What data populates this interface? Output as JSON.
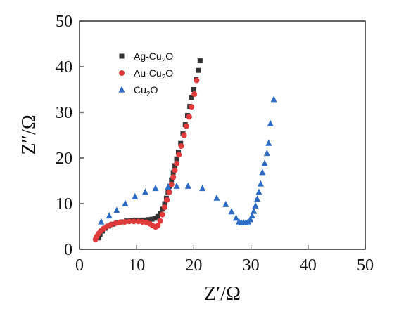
{
  "chart_data": {
    "type": "scatter",
    "xlabel": "Z′/Ω",
    "ylabel": "Z″/Ω",
    "xlim": [
      0,
      50
    ],
    "ylim": [
      0,
      50
    ],
    "xticks": [
      "0",
      "10",
      "20",
      "30",
      "40",
      "50"
    ],
    "yticks": [
      "0",
      "10",
      "20",
      "30",
      "40",
      "50"
    ],
    "grid": false,
    "legend_position": "top-left",
    "series": [
      {
        "name": "Ag-Cu2O",
        "label_parts": [
          "Ag-Cu",
          "2",
          "O"
        ],
        "marker": "square",
        "color": "#333333",
        "points": [
          [
            3.4,
            2.5
          ],
          [
            3.6,
            3.3
          ],
          [
            4.0,
            4.0
          ],
          [
            4.5,
            4.6
          ],
          [
            5.1,
            5.1
          ],
          [
            5.8,
            5.5
          ],
          [
            6.6,
            5.8
          ],
          [
            7.4,
            6.0
          ],
          [
            8.2,
            6.2
          ],
          [
            9.0,
            6.3
          ],
          [
            9.8,
            6.4
          ],
          [
            10.6,
            6.4
          ],
          [
            11.4,
            6.4
          ],
          [
            12.1,
            6.5
          ],
          [
            12.7,
            6.6
          ],
          [
            13.2,
            6.8
          ],
          [
            13.7,
            7.2
          ],
          [
            14.1,
            7.8
          ],
          [
            14.5,
            8.8
          ],
          [
            14.9,
            10.0
          ],
          [
            15.2,
            11.2
          ],
          [
            15.5,
            12.5
          ],
          [
            15.8,
            13.8
          ],
          [
            16.1,
            15.2
          ],
          [
            16.4,
            16.8
          ],
          [
            16.7,
            18.3
          ],
          [
            17.0,
            19.8
          ],
          [
            17.3,
            21.3
          ],
          [
            17.7,
            23.2
          ],
          [
            18.1,
            25.3
          ],
          [
            18.5,
            27.3
          ],
          [
            18.9,
            29.3
          ],
          [
            19.3,
            31.3
          ],
          [
            19.6,
            33.3
          ],
          [
            20.0,
            35.0
          ],
          [
            20.4,
            37.2
          ],
          [
            20.8,
            39.2
          ],
          [
            21.1,
            41.3
          ]
        ]
      },
      {
        "name": "Au-Cu2O",
        "label_parts": [
          "Au-Cu",
          "2",
          "O"
        ],
        "marker": "circle",
        "color": "#e03a3a",
        "points": [
          [
            2.8,
            2.2
          ],
          [
            3.0,
            2.8
          ],
          [
            3.3,
            3.4
          ],
          [
            3.7,
            4.0
          ],
          [
            4.2,
            4.5
          ],
          [
            4.8,
            5.0
          ],
          [
            5.5,
            5.4
          ],
          [
            6.3,
            5.7
          ],
          [
            7.1,
            5.9
          ],
          [
            7.9,
            6.0
          ],
          [
            8.7,
            6.1
          ],
          [
            9.5,
            6.1
          ],
          [
            10.3,
            6.1
          ],
          [
            11.0,
            6.0
          ],
          [
            11.7,
            5.9
          ],
          [
            12.3,
            5.6
          ],
          [
            12.8,
            5.2
          ],
          [
            13.3,
            4.9
          ],
          [
            13.7,
            5.2
          ],
          [
            14.1,
            6.2
          ],
          [
            14.5,
            7.6
          ],
          [
            14.9,
            9.2
          ],
          [
            15.3,
            10.8
          ],
          [
            15.7,
            12.5
          ],
          [
            16.1,
            14.2
          ],
          [
            16.4,
            15.8
          ],
          [
            16.7,
            17.3
          ],
          [
            17.0,
            18.8
          ],
          [
            17.4,
            20.7
          ],
          [
            17.8,
            22.6
          ],
          [
            18.3,
            25.0
          ],
          [
            18.7,
            27.0
          ],
          [
            19.2,
            29.0
          ],
          [
            19.6,
            31.2
          ],
          [
            20.1,
            34.0
          ],
          [
            20.5,
            37.0
          ]
        ]
      },
      {
        "name": "Cu2O",
        "label_parts": [
          "Cu",
          "2",
          "O"
        ],
        "marker": "triangle",
        "color": "#2e6bc4",
        "points": [
          [
            3.8,
            6.0
          ],
          [
            5.2,
            7.3
          ],
          [
            6.5,
            8.5
          ],
          [
            8.0,
            10.0
          ],
          [
            9.7,
            11.5
          ],
          [
            11.5,
            12.5
          ],
          [
            13.3,
            13.3
          ],
          [
            15.5,
            13.6
          ],
          [
            17.0,
            13.8
          ],
          [
            19.0,
            13.8
          ],
          [
            21.5,
            13.3
          ],
          [
            24.0,
            11.2
          ],
          [
            25.6,
            9.8
          ],
          [
            26.6,
            8.2
          ],
          [
            27.4,
            6.8
          ],
          [
            27.9,
            6.0
          ],
          [
            28.3,
            5.8
          ],
          [
            28.7,
            5.8
          ],
          [
            29.1,
            5.8
          ],
          [
            29.5,
            6.0
          ],
          [
            29.9,
            6.5
          ],
          [
            30.2,
            7.3
          ],
          [
            30.5,
            8.3
          ],
          [
            30.8,
            9.5
          ],
          [
            31.1,
            11.0
          ],
          [
            31.4,
            12.5
          ],
          [
            31.7,
            14.3
          ],
          [
            32.0,
            16.8
          ],
          [
            32.4,
            18.8
          ],
          [
            32.8,
            21.0
          ],
          [
            33.1,
            23.2
          ],
          [
            33.4,
            27.5
          ],
          [
            34.0,
            32.8
          ]
        ]
      }
    ]
  }
}
